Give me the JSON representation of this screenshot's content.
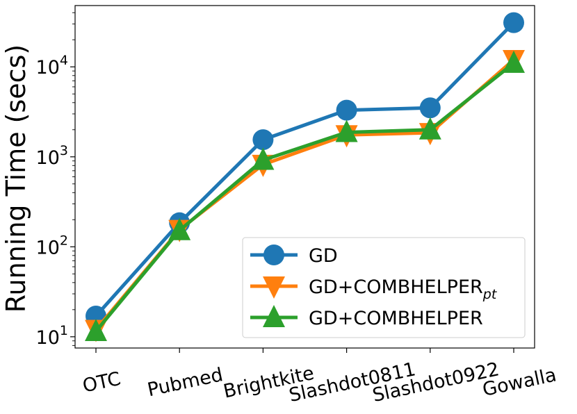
{
  "chart_data": {
    "type": "line",
    "title": "",
    "xlabel": "",
    "ylabel": "Running Time (secs)",
    "yscale": "log",
    "ylim": [
      7.5,
      48000
    ],
    "ytick_values": [
      10,
      100,
      1000,
      10000
    ],
    "ytick_labels": [
      {
        "base": "10",
        "exp": "1"
      },
      {
        "base": "10",
        "exp": "2"
      },
      {
        "base": "10",
        "exp": "3"
      },
      {
        "base": "10",
        "exp": "4"
      }
    ],
    "categories": [
      "OTC",
      "Pubmed",
      "Brightkite",
      "Slashdot0811",
      "Slashdot0922",
      "Gowalla"
    ],
    "grid": false,
    "legend_position": "lower-right",
    "series": [
      {
        "name": "GD",
        "name_sub": "",
        "color": "#1f77b4",
        "marker": "circle",
        "values": [
          17,
          185,
          1550,
          3300,
          3500,
          31000
        ]
      },
      {
        "name": "GD+COMBHELPER",
        "name_sub": "pt",
        "color": "#ff7f0e",
        "marker": "triangle-down",
        "values": [
          12,
          155,
          820,
          1750,
          1850,
          12000
        ]
      },
      {
        "name": "GD+COMBHELPER",
        "name_sub": "",
        "color": "#2ca02c",
        "marker": "triangle-up",
        "values": [
          11.5,
          152,
          920,
          1870,
          2000,
          11000
        ]
      }
    ]
  }
}
